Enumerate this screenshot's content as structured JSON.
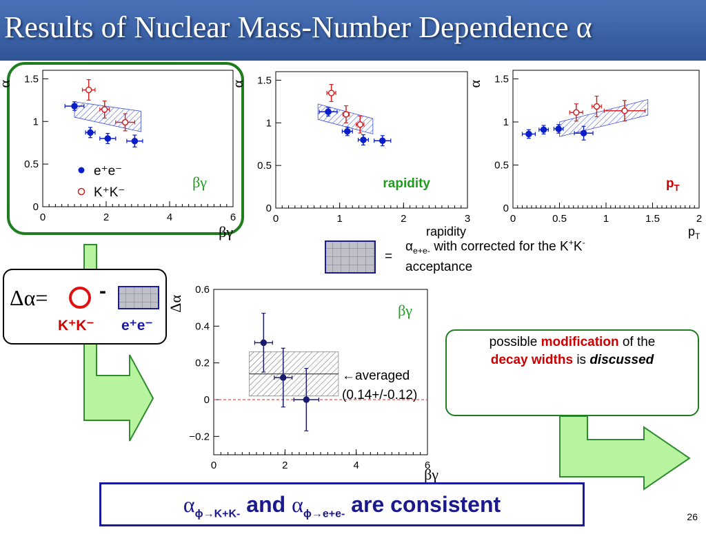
{
  "slide": {
    "title": "Results of Nuclear Mass-Number Dependence α",
    "page_number": "26",
    "legend": {
      "ee": "e⁺e⁻",
      "kk": "K⁺K⁻"
    },
    "acceptance_note": {
      "eq": "=",
      "alpha": "α",
      "sub": "e+e-",
      "text": " with corrected for the K",
      "sup1": "+",
      "text2": "K",
      "sup2": "-",
      "line2": "acceptance"
    },
    "delta_formula": {
      "lhs": "Δα=",
      "minus": "-",
      "kk_label": "K⁺K⁻",
      "ee_label": "e⁺e⁻"
    },
    "message": {
      "part1": "possible ",
      "part2": "modification",
      "part3": " of the",
      "part4": "decay widths",
      "part5": " is ",
      "part6": "discussed"
    },
    "conclusion": {
      "alpha1": "α",
      "sub1": "ϕ→K+K-",
      "mid": " and ",
      "alpha2": "α",
      "sub2": "ϕ→e+e-",
      "end": " are consistent"
    },
    "averaged_annotation": {
      "arrow_text": "←averaged",
      "value": "(0.14+/-0.12)"
    },
    "colors": {
      "ee": "#0a1ec8",
      "kk": "#d42020",
      "delta": "#1a1a6e",
      "green": "#1f9b1f"
    }
  },
  "chart_data": [
    {
      "type": "scatter",
      "xlabel": "βγ",
      "ylabel": "α",
      "xlim": [
        0,
        6
      ],
      "ylim": [
        0,
        1.6
      ],
      "xticks": [
        "0",
        "2",
        "4",
        "6"
      ],
      "yticks": [
        "0",
        "0.5",
        "1",
        "1.5"
      ],
      "panel_label": "βγ",
      "series": [
        {
          "name": "e⁺e⁻",
          "points": [
            {
              "x": 1.0,
              "y": 1.18,
              "xerr": 0.3,
              "yerr": 0.05
            },
            {
              "x": 1.5,
              "y": 0.87,
              "xerr": 0.15,
              "yerr": 0.06
            },
            {
              "x": 2.05,
              "y": 0.8,
              "xerr": 0.25,
              "yerr": 0.06
            },
            {
              "x": 2.9,
              "y": 0.77,
              "xerr": 0.25,
              "yerr": 0.07
            }
          ]
        },
        {
          "name": "K⁺K⁻",
          "points": [
            {
              "x": 1.45,
              "y": 1.37,
              "xerr": 0.2,
              "yerr": 0.12
            },
            {
              "x": 1.95,
              "y": 1.14,
              "xerr": 0.15,
              "yerr": 0.1
            },
            {
              "x": 2.6,
              "y": 0.99,
              "xerr": 0.3,
              "yerr": 0.1
            }
          ]
        }
      ],
      "band": [
        [
          1.0,
          1.23
        ],
        [
          3.1,
          1.12
        ],
        [
          3.1,
          0.88
        ],
        [
          1.0,
          1.05
        ]
      ]
    },
    {
      "type": "scatter",
      "xlabel": "rapidity",
      "ylabel": "α",
      "xlim": [
        0,
        3
      ],
      "ylim": [
        0,
        1.6
      ],
      "xticks": [
        "0",
        "1",
        "2",
        "3"
      ],
      "yticks": [
        "0",
        "0.5",
        "1",
        "1.5"
      ],
      "panel_label": "rapidity",
      "series": [
        {
          "name": "e⁺e⁻",
          "points": [
            {
              "x": 0.82,
              "y": 1.13,
              "xerr": 0.14,
              "yerr": 0.05
            },
            {
              "x": 1.12,
              "y": 0.9,
              "xerr": 0.08,
              "yerr": 0.05
            },
            {
              "x": 1.37,
              "y": 0.8,
              "xerr": 0.08,
              "yerr": 0.06
            },
            {
              "x": 1.67,
              "y": 0.79,
              "xerr": 0.13,
              "yerr": 0.06
            }
          ]
        },
        {
          "name": "K⁺K⁻",
          "points": [
            {
              "x": 0.87,
              "y": 1.35,
              "xerr": 0.07,
              "yerr": 0.1
            },
            {
              "x": 1.1,
              "y": 1.1,
              "xerr": 0.05,
              "yerr": 0.1
            },
            {
              "x": 1.32,
              "y": 0.98,
              "xerr": 0.06,
              "yerr": 0.1
            }
          ]
        }
      ],
      "band": [
        [
          0.66,
          1.22
        ],
        [
          1.52,
          1.05
        ],
        [
          1.52,
          0.87
        ],
        [
          0.66,
          1.04
        ]
      ]
    },
    {
      "type": "scatter",
      "xlabel": "p_T",
      "ylabel": "α",
      "xlim": [
        0,
        2
      ],
      "ylim": [
        0,
        1.6
      ],
      "xticks": [
        "0",
        "0.5",
        "1",
        "1.5",
        "2"
      ],
      "yticks": [
        "0",
        "0.5",
        "1",
        "1.5"
      ],
      "panel_label": "p_T",
      "series": [
        {
          "name": "e⁺e⁻",
          "points": [
            {
              "x": 0.17,
              "y": 0.86,
              "xerr": 0.07,
              "yerr": 0.05
            },
            {
              "x": 0.33,
              "y": 0.91,
              "xerr": 0.05,
              "yerr": 0.05
            },
            {
              "x": 0.49,
              "y": 0.92,
              "xerr": 0.05,
              "yerr": 0.05
            },
            {
              "x": 0.76,
              "y": 0.87,
              "xerr": 0.1,
              "yerr": 0.08
            }
          ]
        },
        {
          "name": "K⁺K⁻",
          "points": [
            {
              "x": 0.68,
              "y": 1.11,
              "xerr": 0.07,
              "yerr": 0.1
            },
            {
              "x": 0.9,
              "y": 1.18,
              "xerr": 0.05,
              "yerr": 0.12
            },
            {
              "x": 1.2,
              "y": 1.13,
              "xerr": 0.22,
              "yerr": 0.12
            }
          ]
        }
      ],
      "band": [
        [
          0.5,
          1.0
        ],
        [
          1.45,
          1.26
        ],
        [
          1.45,
          1.08
        ],
        [
          0.5,
          0.83
        ]
      ]
    },
    {
      "type": "scatter",
      "xlabel": "βγ",
      "ylabel": "Δα",
      "xlim": [
        0,
        6
      ],
      "ylim": [
        -0.3,
        0.6
      ],
      "xticks": [
        "0",
        "2",
        "4",
        "6"
      ],
      "yticks": [
        "−0.2",
        "0",
        "0.2",
        "0.4",
        "0.6"
      ],
      "panel_label": "βγ",
      "series": [
        {
          "name": "Δα",
          "points": [
            {
              "x": 1.4,
              "y": 0.31,
              "xerr": 0.25,
              "yerr": 0.16
            },
            {
              "x": 1.95,
              "y": 0.12,
              "xerr": 0.25,
              "yerr": 0.16
            },
            {
              "x": 2.6,
              "y": 0.0,
              "xerr": 0.35,
              "yerr": 0.17
            }
          ]
        }
      ],
      "band": [
        [
          1.0,
          0.26
        ],
        [
          3.5,
          0.26
        ],
        [
          3.5,
          0.02
        ],
        [
          1.0,
          0.02
        ]
      ],
      "average": 0.14
    }
  ]
}
